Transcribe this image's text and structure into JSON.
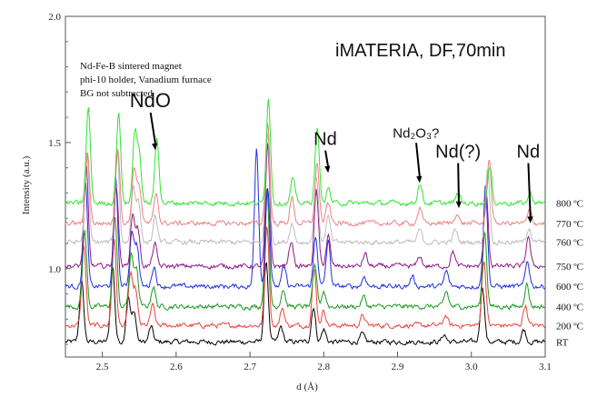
{
  "chart_data": {
    "type": "line",
    "title": "iMATERIA, DF,70min",
    "notes": [
      "Nd-Fe-B sintered magnet",
      "phi-10 holder, Vanadium furnace",
      "BG not subtracted"
    ],
    "xlabel": "d (Å)",
    "ylabel": "Intensity (a.u.)",
    "xlim": [
      2.45,
      3.1
    ],
    "ylim": [
      0.65,
      2.0
    ],
    "xticks": [
      2.5,
      2.6,
      2.7,
      2.8,
      2.9,
      3.0,
      3.1
    ],
    "yticks": [
      1.0,
      1.5,
      2.0
    ],
    "xtick_labels": [
      "2.5",
      "2.6",
      "2.7",
      "2.8",
      "2.9",
      "3.0",
      "3.1"
    ],
    "ytick_labels": [
      "1.0",
      "1.5",
      "2.0"
    ],
    "grid": false,
    "series": [
      {
        "name": "RT",
        "color": "#000000",
        "baseline": 0.71,
        "peaks": [
          [
            2.472,
            0.24
          ],
          [
            2.514,
            0.3
          ],
          [
            2.535,
            0.18
          ],
          [
            2.543,
            0.12
          ],
          [
            2.566,
            0.06
          ],
          [
            2.722,
            0.32
          ],
          [
            2.742,
            0.06
          ],
          [
            2.786,
            0.14
          ],
          [
            2.8,
            0.05
          ],
          [
            2.852,
            0.03
          ],
          [
            2.963,
            0.03
          ],
          [
            3.015,
            0.22
          ],
          [
            3.071,
            0.05
          ]
        ]
      },
      {
        "name": "200 ºC",
        "color": "#e8453c",
        "baseline": 0.775,
        "peaks": [
          [
            2.475,
            0.32
          ],
          [
            2.516,
            0.34
          ],
          [
            2.538,
            0.2
          ],
          [
            2.545,
            0.14
          ],
          [
            2.568,
            0.08
          ],
          [
            2.723,
            0.4
          ],
          [
            2.744,
            0.07
          ],
          [
            2.787,
            0.22
          ],
          [
            2.8,
            0.06
          ],
          [
            2.853,
            0.04
          ],
          [
            2.965,
            0.04
          ],
          [
            3.017,
            0.26
          ],
          [
            3.073,
            0.08
          ]
        ]
      },
      {
        "name": "400 ºC",
        "color": "#1a9a1a",
        "baseline": 0.85,
        "peaks": [
          [
            2.476,
            0.3
          ],
          [
            2.517,
            0.36
          ],
          [
            2.539,
            0.2
          ],
          [
            2.546,
            0.15
          ],
          [
            2.569,
            0.08
          ],
          [
            2.723,
            0.48
          ],
          [
            2.745,
            0.07
          ],
          [
            2.788,
            0.16
          ],
          [
            2.8,
            0.06
          ],
          [
            2.854,
            0.04
          ],
          [
            2.966,
            0.06
          ],
          [
            3.018,
            0.3
          ],
          [
            3.075,
            0.09
          ]
        ]
      },
      {
        "name": "600 ºC",
        "color": "#1f2fe0",
        "baseline": 0.93,
        "peaks": [
          [
            2.477,
            0.42
          ],
          [
            2.518,
            0.44
          ],
          [
            2.54,
            0.22
          ],
          [
            2.547,
            0.16
          ],
          [
            2.57,
            0.08
          ],
          [
            2.709,
            0.55
          ],
          [
            2.724,
            0.4
          ],
          [
            2.746,
            0.08
          ],
          [
            2.789,
            0.2
          ],
          [
            2.806,
            0.18
          ],
          [
            2.855,
            0.04
          ],
          [
            2.92,
            0.04
          ],
          [
            2.966,
            0.06
          ],
          [
            3.019,
            0.4
          ],
          [
            3.076,
            0.1
          ]
        ]
      },
      {
        "name": "750 ºC",
        "color": "#8e1a86",
        "baseline": 1.01,
        "peaks": [
          [
            2.478,
            0.4
          ],
          [
            2.519,
            0.32
          ],
          [
            2.541,
            0.2
          ],
          [
            2.548,
            0.15
          ],
          [
            2.571,
            0.09
          ],
          [
            2.724,
            0.48
          ],
          [
            2.756,
            0.1
          ],
          [
            2.79,
            0.3
          ],
          [
            2.806,
            0.12
          ],
          [
            2.856,
            0.05
          ],
          [
            2.93,
            0.04
          ],
          [
            2.975,
            0.06
          ],
          [
            3.02,
            0.3
          ],
          [
            3.077,
            0.12
          ]
        ]
      },
      {
        "name": "760 ºC",
        "color": "#bdbdbd",
        "baseline": 1.105,
        "peaks": [
          [
            2.479,
            0.36
          ],
          [
            2.52,
            0.38
          ],
          [
            2.542,
            0.22
          ],
          [
            2.549,
            0.16
          ],
          [
            2.572,
            0.1
          ],
          [
            2.724,
            0.44
          ],
          [
            2.757,
            0.08
          ],
          [
            2.79,
            0.26
          ],
          [
            2.806,
            0.1
          ],
          [
            2.93,
            0.05
          ],
          [
            2.978,
            0.05
          ],
          [
            3.022,
            0.3
          ],
          [
            3.078,
            0.06
          ]
        ]
      },
      {
        "name": "770 ºC",
        "color": "#f08080",
        "baseline": 1.18,
        "peaks": [
          [
            2.48,
            0.28
          ],
          [
            2.521,
            0.3
          ],
          [
            2.543,
            0.22
          ],
          [
            2.55,
            0.15
          ],
          [
            2.573,
            0.12
          ],
          [
            2.724,
            0.4
          ],
          [
            2.757,
            0.1
          ],
          [
            2.791,
            0.24
          ],
          [
            2.806,
            0.08
          ],
          [
            2.93,
            0.06
          ],
          [
            2.98,
            0.04
          ],
          [
            3.024,
            0.26
          ],
          [
            3.079,
            0.05
          ]
        ]
      },
      {
        "name": "800 ºC",
        "color": "#33e333",
        "baseline": 1.26,
        "peaks": [
          [
            2.481,
            0.38
          ],
          [
            2.522,
            0.36
          ],
          [
            2.544,
            0.28
          ],
          [
            2.55,
            0.18
          ],
          [
            2.574,
            0.26
          ],
          [
            2.725,
            0.42
          ],
          [
            2.758,
            0.1
          ],
          [
            2.791,
            0.3
          ],
          [
            2.806,
            0.06
          ],
          [
            2.93,
            0.08
          ],
          [
            2.982,
            0.04
          ],
          [
            3.025,
            0.14
          ],
          [
            3.08,
            0.04
          ]
        ]
      }
    ],
    "annotations": [
      {
        "label": "NdO",
        "x": 2.572,
        "y": 1.47,
        "label_x": 2.565,
        "label_y": 1.64,
        "size": 22
      },
      {
        "label": "Nd",
        "x": 2.806,
        "y": 1.38,
        "label_x": 2.802,
        "label_y": 1.49,
        "size": 20
      },
      {
        "label": "Nd₂O₃?",
        "x": 2.93,
        "y": 1.34,
        "label_x": 2.925,
        "label_y": 1.52,
        "size": 15
      },
      {
        "label": "Nd(?)",
        "x": 2.983,
        "y": 1.24,
        "label_x": 2.982,
        "label_y": 1.44,
        "size": 20
      },
      {
        "label": "Nd",
        "x": 3.08,
        "y": 1.18,
        "label_x": 3.077,
        "label_y": 1.44,
        "size": 20
      }
    ]
  }
}
